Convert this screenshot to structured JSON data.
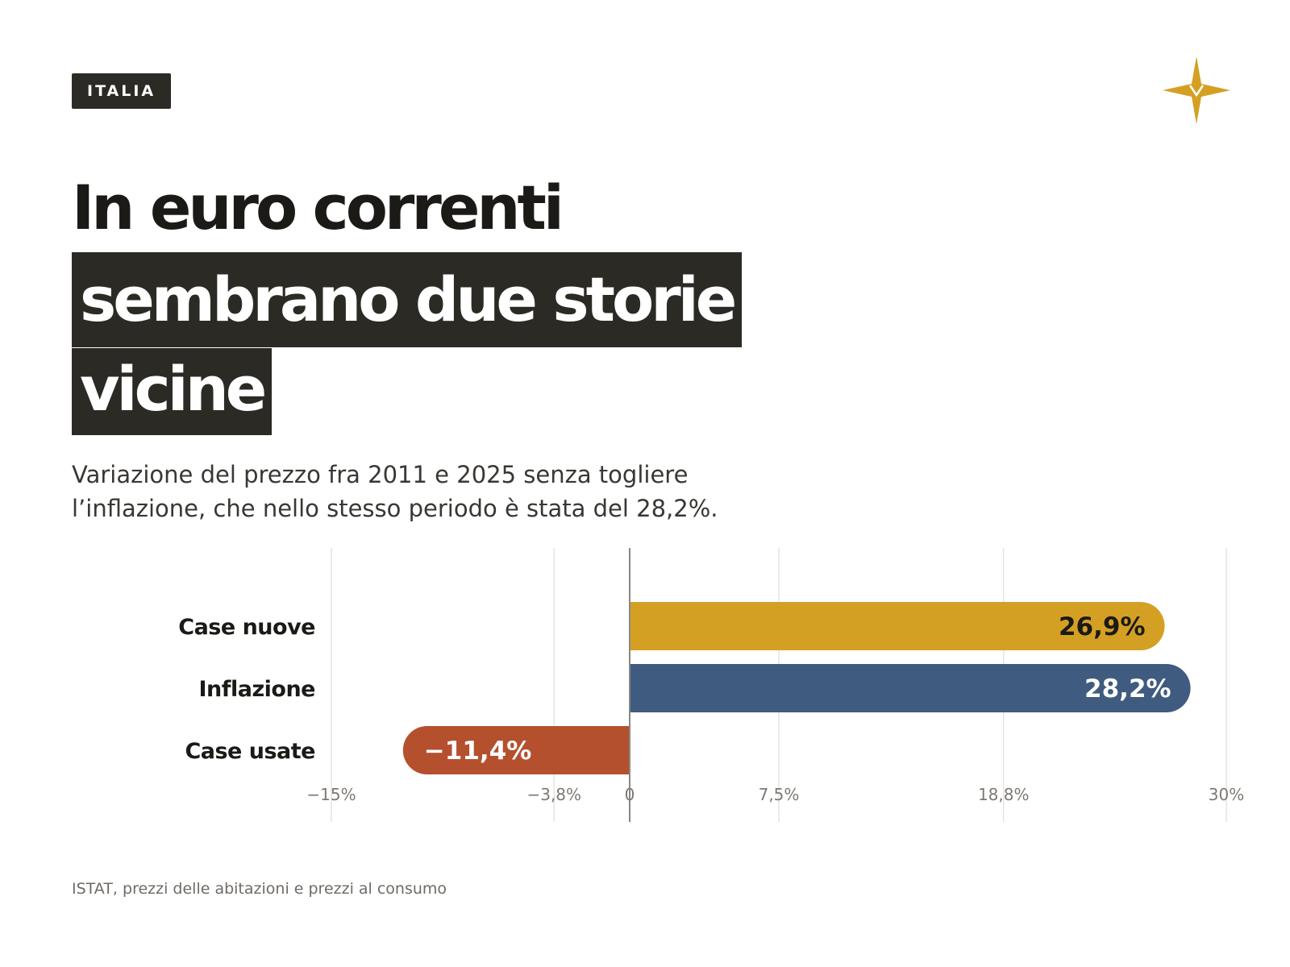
{
  "header": {
    "tag": "ITALIA",
    "logo_icon": "four-point-star-icon",
    "logo_color": "#D4A024"
  },
  "title": {
    "line1": "In euro correnti",
    "line2": "sembrano due storie",
    "line3": "vicine"
  },
  "subtitle": {
    "line1": "Variazione del prezzo fra 2011 e 2025 senza togliere",
    "line2": "l’inflazione, che nello stesso periodo è stata del 28,2%."
  },
  "chart_data": {
    "type": "bar",
    "orientation": "horizontal",
    "categories": [
      "Case nuove",
      "Inflazione",
      "Case usate"
    ],
    "values": [
      26.9,
      28.2,
      -11.4
    ],
    "value_labels": [
      "26,9%",
      "28,2%",
      "−11,4%"
    ],
    "colors": [
      "#D4A024",
      "#3F5B7F",
      "#B5502F"
    ],
    "label_colors": [
      "#1c1a17",
      "#ffffff",
      "#ffffff"
    ],
    "xlim": [
      -15,
      30
    ],
    "ticks": [
      -15,
      -3.8,
      0,
      7.5,
      18.8,
      30
    ],
    "tick_labels": [
      "−15%",
      "−3,8%",
      "0",
      "7,5%",
      "18,8%",
      "30%"
    ],
    "grid": true,
    "title": "",
    "xlabel": "",
    "ylabel": ""
  },
  "source": "ISTAT, prezzi delle abitazioni e prezzi al consumo"
}
